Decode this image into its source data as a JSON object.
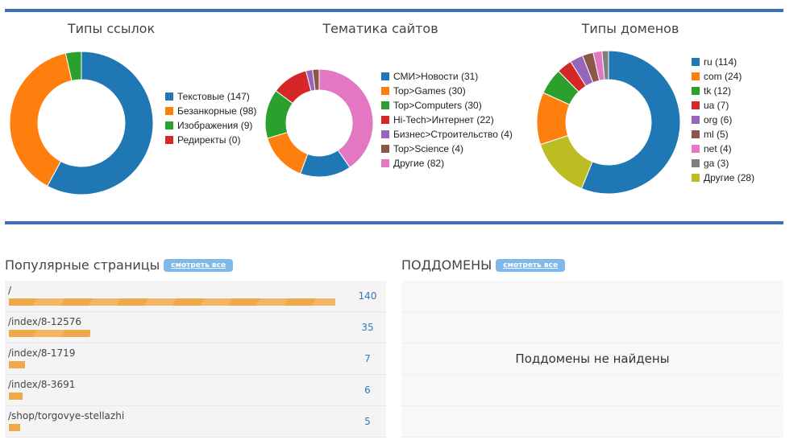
{
  "chart_data": [
    {
      "type": "pie",
      "donut": true,
      "title": "Типы ссылок",
      "legend": "right",
      "labels": [
        "Текстовые (147)",
        "Безанкорные (98)",
        "Изображения (9)",
        "Редиректы (0)"
      ],
      "categories": [
        "Текстовые",
        "Безанкорные",
        "Изображения",
        "Редиректы"
      ],
      "values": [
        147,
        98,
        9,
        0
      ],
      "colors": [
        "#1f77b4",
        "#ff7f0e",
        "#2ca02c",
        "#d62728"
      ]
    },
    {
      "type": "pie",
      "donut": true,
      "title": "Тематика сайтов",
      "legend": "right",
      "labels": [
        "СМИ>Новости (31)",
        "Top>Games (30)",
        "Top>Computers (30)",
        "Hi-Tech>Интернет (22)",
        "Бизнес>Строительство (4)",
        "Top>Science (4)",
        "Другие (82)"
      ],
      "categories": [
        "СМИ>Новости",
        "Top>Games",
        "Top>Computers",
        "Hi-Tech>Интернет",
        "Бизнес>Строительство",
        "Top>Science",
        "Другие"
      ],
      "values": [
        31,
        30,
        30,
        22,
        4,
        4,
        82
      ],
      "colors": [
        "#1f77b4",
        "#ff7f0e",
        "#2ca02c",
        "#d62728",
        "#9467bd",
        "#8c564b",
        "#e377c2"
      ]
    },
    {
      "type": "pie",
      "donut": true,
      "title": "Типы доменов",
      "legend": "right",
      "labels": [
        "ru (114)",
        "com (24)",
        "tk (12)",
        "ua (7)",
        "org (6)",
        "ml (5)",
        "net (4)",
        "ga (3)",
        "Другие (28)"
      ],
      "categories": [
        "ru",
        "com",
        "tk",
        "ua",
        "org",
        "ml",
        "net",
        "ga",
        "Другие"
      ],
      "values": [
        114,
        24,
        12,
        7,
        6,
        5,
        4,
        3,
        28
      ],
      "colors": [
        "#1f77b4",
        "#ff7f0e",
        "#2ca02c",
        "#d62728",
        "#9467bd",
        "#8c564b",
        "#e377c2",
        "#7f7f7f",
        "#bcbd22"
      ]
    }
  ],
  "popular": {
    "title": "Популярные страницы",
    "view_all": "смотреть все",
    "rows": [
      {
        "path": "/",
        "count": "140",
        "value": 140
      },
      {
        "path": "/index/8-12576",
        "count": "35",
        "value": 35
      },
      {
        "path": "/index/8-1719",
        "count": "7",
        "value": 7
      },
      {
        "path": "/index/8-3691",
        "count": "6",
        "value": 6
      },
      {
        "path": "/shop/torgovye-stellazhi",
        "count": "5",
        "value": 5
      }
    ]
  },
  "subdomains": {
    "title": "ПОДДОМЕНЫ",
    "view_all": "смотреть все",
    "empty": "Поддомены не найдены"
  }
}
